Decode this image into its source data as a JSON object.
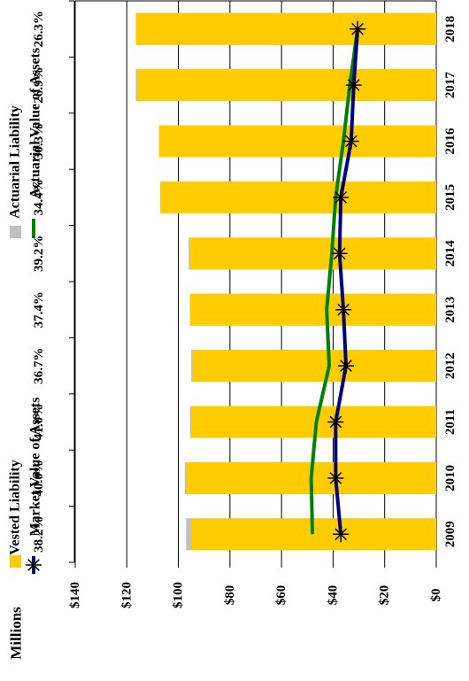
{
  "chart_data": {
    "type": "bar",
    "orientation": "rotated-90-clockwise",
    "categories": [
      "2009",
      "2010",
      "2011",
      "2012",
      "2013",
      "2014",
      "2015",
      "2016",
      "2017",
      "2018"
    ],
    "percent_labels": [
      "38.2%",
      "40.0%",
      "41.0%",
      "36.7%",
      "37.4%",
      "39.2%",
      "34.4%",
      "30.3%",
      "26.9%",
      "26.3%"
    ],
    "series": [
      {
        "name": "Actuarial Liability",
        "kind": "bar",
        "color": "#c0c0c0",
        "values": [
          97,
          97.5,
          95.5,
          95,
          95.5,
          96,
          107,
          107.5,
          116.5,
          116.5
        ]
      },
      {
        "name": "Vested Liability",
        "kind": "bar",
        "color": "#ffcc00",
        "values": [
          95,
          97,
          95,
          94.5,
          95.5,
          95.5,
          107,
          107.5,
          116,
          116.5
        ]
      },
      {
        "name": "Actuarial Value of Assets",
        "kind": "line",
        "color": "#008000",
        "values": [
          48,
          48.5,
          46.5,
          41.5,
          42.5,
          40.5,
          39,
          36,
          33.5,
          30.5
        ]
      },
      {
        "name": "Market Value of Assets",
        "kind": "line",
        "color": "#000080",
        "values": [
          37,
          39,
          39,
          35,
          36,
          37.5,
          37,
          33,
          32,
          30.5
        ]
      }
    ],
    "ylabel": "Millions",
    "y_ticks": [
      "$0",
      "$20",
      "$40",
      "$60",
      "$80",
      "$100",
      "$120",
      "$140"
    ],
    "ylim": [
      0,
      140
    ],
    "grid": true,
    "legend": {
      "position": "top",
      "items": [
        {
          "label": "Vested Liability",
          "icon": "yellow-box"
        },
        {
          "label": "Market Value of Assets",
          "icon": "navy-line-star-marker"
        },
        {
          "label": "Actuarial Liability",
          "icon": "gray-box"
        },
        {
          "label": "Actuarial Value of Assets",
          "icon": "green-line"
        }
      ]
    }
  }
}
